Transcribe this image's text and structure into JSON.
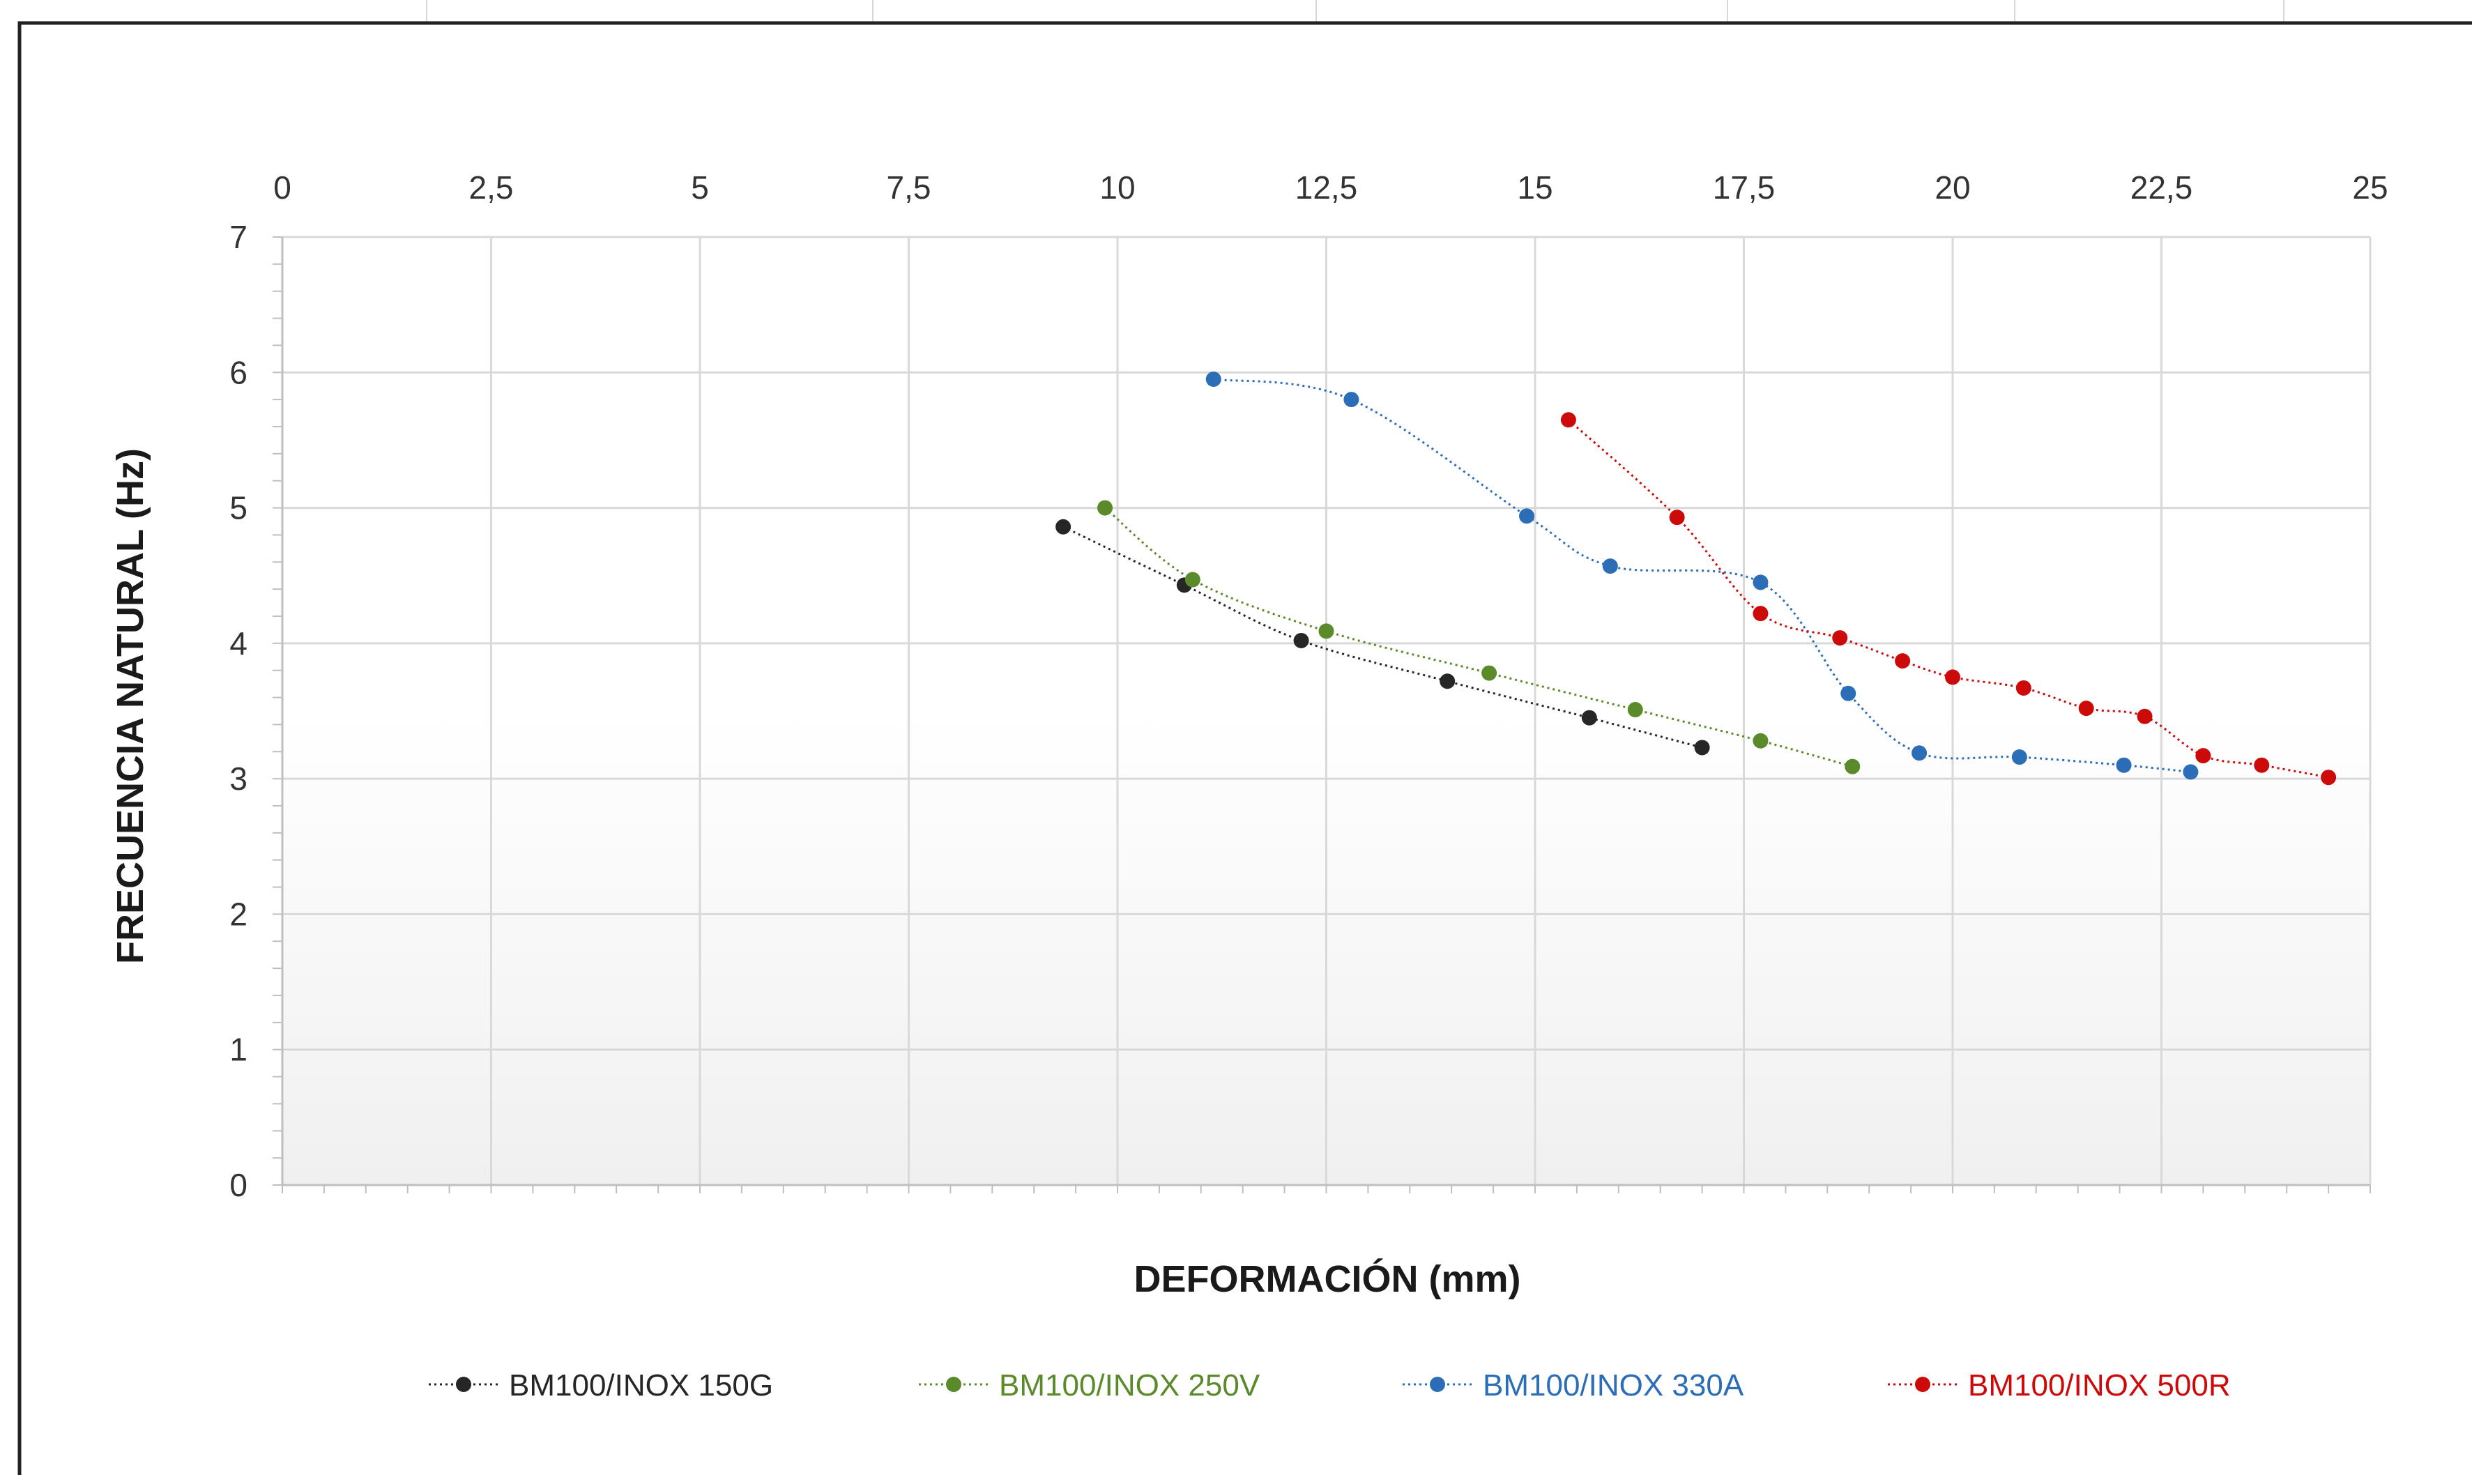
{
  "chart_data": {
    "type": "line",
    "title": "",
    "xlabel": "DEFORMACIÓN (mm)",
    "ylabel": "FRECUENCIA NATURAL (Hz)",
    "xlim": [
      0,
      25
    ],
    "ylim": [
      0,
      7
    ],
    "x_ticks": [
      "0",
      "2,5",
      "5",
      "7,5",
      "10",
      "12,5",
      "15",
      "17,5",
      "20",
      "22,5",
      "25"
    ],
    "y_ticks": [
      "0",
      "1",
      "2",
      "3",
      "4",
      "5",
      "6",
      "7"
    ],
    "x_tick_values": [
      0,
      2.5,
      5,
      7.5,
      10,
      12.5,
      15,
      17.5,
      20,
      22.5,
      25
    ],
    "y_tick_values": [
      0,
      1,
      2,
      3,
      4,
      5,
      6,
      7
    ],
    "x_axis_position": "top",
    "grid": true,
    "legend_position": "bottom",
    "series": [
      {
        "name": "BM100/INOX 150G",
        "color": "#262626",
        "line_style": "dotted",
        "points": [
          [
            9.35,
            4.86
          ],
          [
            10.8,
            4.43
          ],
          [
            12.2,
            4.02
          ],
          [
            13.95,
            3.72
          ],
          [
            15.65,
            3.45
          ],
          [
            17.0,
            3.23
          ]
        ]
      },
      {
        "name": "BM100/INOX 250V",
        "color": "#5a8a2a",
        "line_style": "dotted",
        "points": [
          [
            9.85,
            5.0
          ],
          [
            10.9,
            4.47
          ],
          [
            12.5,
            4.09
          ],
          [
            14.45,
            3.78
          ],
          [
            16.2,
            3.51
          ],
          [
            17.7,
            3.28
          ],
          [
            18.8,
            3.09
          ]
        ]
      },
      {
        "name": "BM100/INOX 330A",
        "color": "#2c6db8",
        "line_style": "dotted",
        "points": [
          [
            11.15,
            5.95
          ],
          [
            12.8,
            5.8
          ],
          [
            14.9,
            4.94
          ],
          [
            15.9,
            4.57
          ],
          [
            17.7,
            4.45
          ],
          [
            18.75,
            3.63
          ],
          [
            19.6,
            3.19
          ],
          [
            20.8,
            3.16
          ],
          [
            22.05,
            3.1
          ],
          [
            22.85,
            3.05
          ]
        ]
      },
      {
        "name": "BM100/INOX 500R",
        "color": "#cc0a0a",
        "line_style": "dotted",
        "points": [
          [
            15.4,
            5.65
          ],
          [
            16.7,
            4.93
          ],
          [
            17.7,
            4.22
          ],
          [
            18.65,
            4.04
          ],
          [
            19.4,
            3.87
          ],
          [
            20.0,
            3.75
          ],
          [
            20.85,
            3.67
          ],
          [
            21.6,
            3.52
          ],
          [
            22.3,
            3.46
          ],
          [
            23.0,
            3.17
          ],
          [
            23.7,
            3.1
          ],
          [
            24.5,
            3.01
          ]
        ]
      }
    ]
  }
}
